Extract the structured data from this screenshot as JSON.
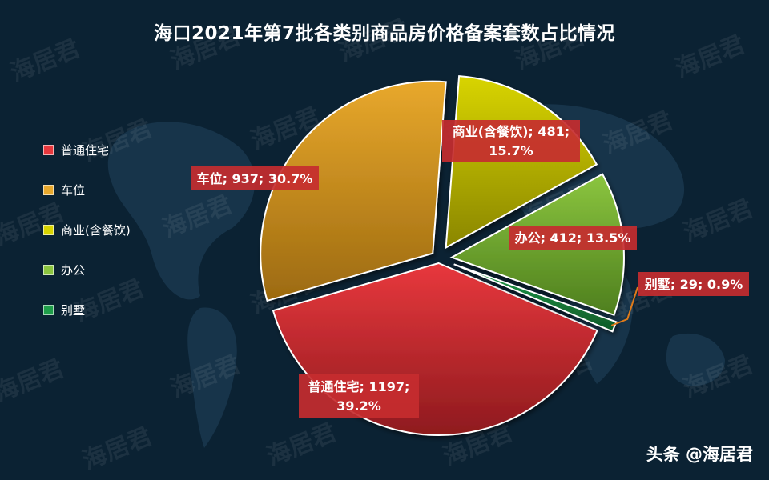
{
  "title": "海口2021年第7批各类别商品房价格备案套数占比情况",
  "footer_text": "头条 @海居君",
  "watermark_text": "海居君",
  "chart_data": {
    "type": "pie",
    "title": "海口2021年第7批各类别商品房价格备案套数占比情况",
    "legend_position": "left",
    "slices": [
      {
        "name": "普通住宅",
        "value": 1197,
        "percent": 39.2,
        "color": "#e8383d",
        "label_line1": "普通住宅; 1197;",
        "label_line2": "39.2%"
      },
      {
        "name": "车位",
        "value": 937,
        "percent": 30.7,
        "color": "#e8a82c",
        "label_line1": "车位; 937; 30.7%",
        "label_line2": ""
      },
      {
        "name": "商业(含餐饮)",
        "value": 481,
        "percent": 15.7,
        "color": "#d8d400",
        "label_line1": "商业(含餐饮); 481;",
        "label_line2": "15.7%"
      },
      {
        "name": "办公",
        "value": 412,
        "percent": 13.5,
        "color": "#8bc53f",
        "label_line1": "办公; 412; 13.5%",
        "label_line2": ""
      },
      {
        "name": "别墅",
        "value": 29,
        "percent": 0.9,
        "color": "#1f9e4a",
        "label_line1": "别墅; 29; 0.9%",
        "label_line2": ""
      }
    ]
  }
}
